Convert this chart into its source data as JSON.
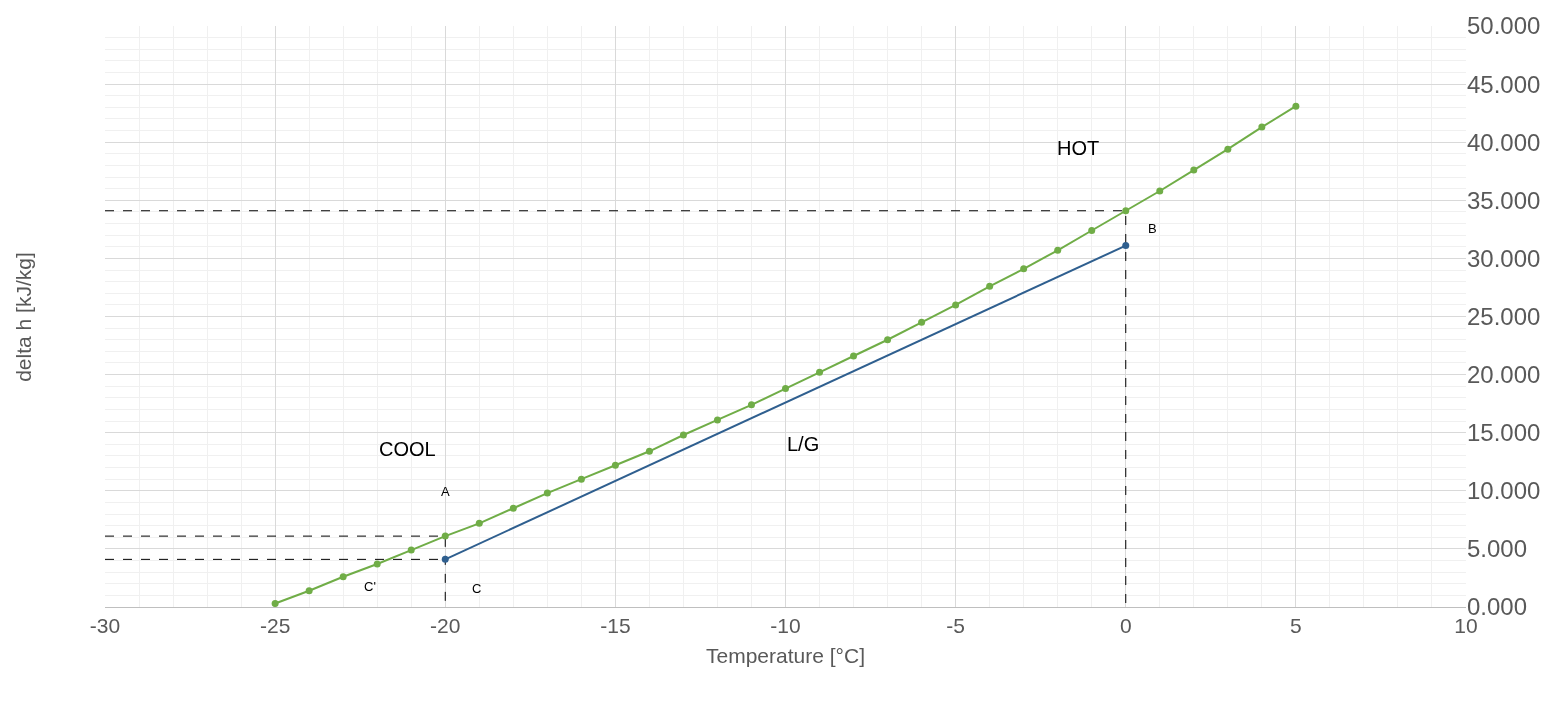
{
  "chart_data": {
    "type": "line",
    "xlabel": "Temperature [°C]",
    "ylabel": "delta h [kJ/kg]",
    "xlim": [
      -30,
      10
    ],
    "xticks": [
      -30,
      -25,
      -20,
      -15,
      -10,
      -5,
      0,
      5,
      10
    ],
    "ylim": [
      0,
      50
    ],
    "yticks": [
      {
        "value": 0,
        "label": "0.000"
      },
      {
        "value": 5,
        "label": "5.000"
      },
      {
        "value": 10,
        "label": "10.000"
      },
      {
        "value": 15,
        "label": "15.000"
      },
      {
        "value": 20,
        "label": "20.000"
      },
      {
        "value": 25,
        "label": "25.000"
      },
      {
        "value": 30,
        "label": "30.000"
      },
      {
        "value": 35,
        "label": "35.000"
      },
      {
        "value": 40,
        "label": "40.000"
      },
      {
        "value": 45,
        "label": "45.000"
      },
      {
        "value": 50,
        "label": "50.000"
      }
    ],
    "grid": true,
    "series": [
      {
        "color": "#000000",
        "line_style": "dashed",
        "marker": "none",
        "x": [
          -30,
          0,
          0
        ],
        "values": [
          34.1,
          34.1,
          0
        ]
      },
      {
        "color": "#000000",
        "line_style": "dashed",
        "marker": "none",
        "x": [
          -30,
          -20,
          -20
        ],
        "values": [
          6.1,
          6.1,
          0
        ]
      },
      {
        "color": "#000000",
        "line_style": "dashed",
        "marker": "none",
        "x": [
          -30,
          -20
        ],
        "values": [
          4.1,
          4.1
        ]
      },
      {
        "color": "#70ad47",
        "line_style": "solid",
        "marker": "circle",
        "x": [
          -25,
          -24,
          -23,
          -22,
          -21,
          -20,
          -19,
          -18,
          -17,
          -16,
          -15,
          -14,
          -13,
          -12,
          -11,
          -10,
          -9,
          -8,
          -7,
          -6,
          -5,
          -4,
          -3,
          -2,
          -1,
          0,
          1,
          2,
          3,
          4,
          5
        ],
        "values": [
          0.3,
          1.4,
          2.6,
          3.7,
          4.9,
          6.1,
          7.2,
          8.5,
          9.8,
          11.0,
          12.2,
          13.4,
          14.8,
          16.1,
          17.4,
          18.8,
          20.2,
          21.6,
          23.0,
          24.5,
          26.0,
          27.6,
          29.1,
          30.7,
          32.4,
          34.1,
          35.8,
          37.6,
          39.4,
          41.3,
          43.1
        ]
      },
      {
        "color": "#2f5f8f",
        "line_style": "solid",
        "marker": "circle",
        "x": [
          -20,
          0
        ],
        "values": [
          4.1,
          31.1
        ]
      }
    ],
    "annotations": [
      {
        "text": "HOT",
        "x": 0,
        "y": 34.1
      },
      "COOL",
      {
        "text": "L/G",
        "x": -9.5,
        "y": 18.3
      },
      {
        "text": "A",
        "x": -20,
        "y": 6.1
      },
      {
        "text": "B",
        "x": 0,
        "y": 31.1
      },
      {
        "text": "C",
        "x": -20,
        "y": 4.1
      },
      {
        "text": "C'",
        "x": -22,
        "y": 3.7
      }
    ]
  }
}
